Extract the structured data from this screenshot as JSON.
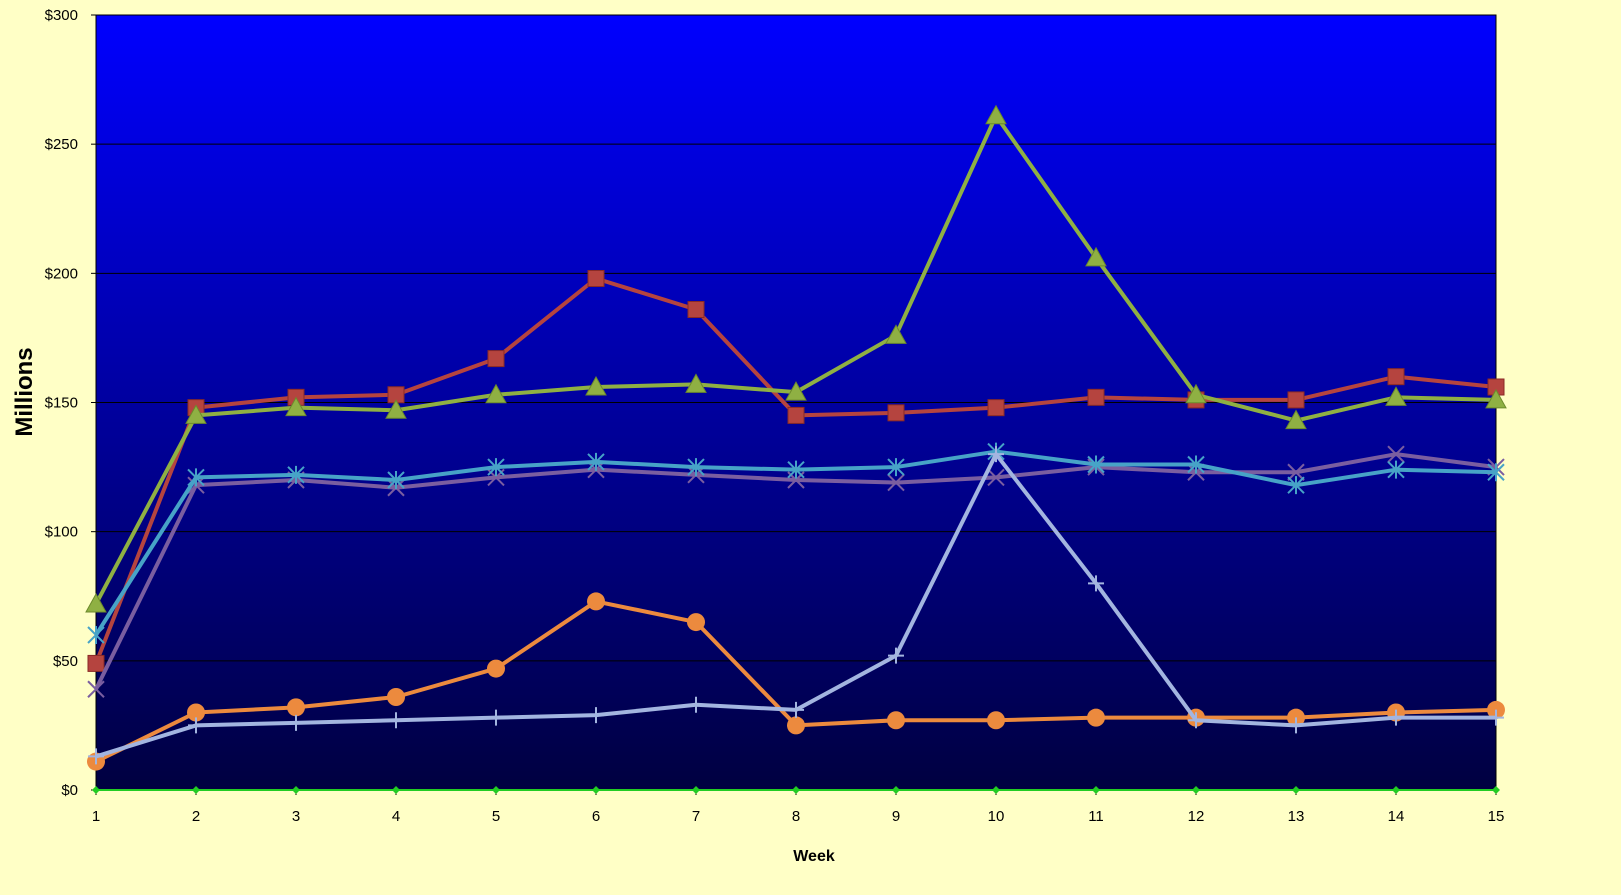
{
  "chart_data": {
    "type": "line",
    "title": "",
    "xlabel": "Week",
    "ylabel": "Millions",
    "x": [
      1,
      2,
      3,
      4,
      5,
      6,
      7,
      8,
      9,
      10,
      11,
      12,
      13,
      14,
      15
    ],
    "y_ticks": [
      "$0",
      "$50",
      "$100",
      "$150",
      "$200",
      "$250",
      "$300"
    ],
    "y_tick_values": [
      0,
      50,
      100,
      150,
      200,
      250,
      300
    ],
    "ylim": [
      0,
      300
    ],
    "grid": true,
    "legend": "none",
    "colors": {
      "page_background": "#ffffc6",
      "plot_gradient_top": "#0000ff",
      "plot_gradient_bottom": "#000040",
      "gridline": "#000000"
    },
    "series": [
      {
        "marker": "square",
        "color": "#b5443f",
        "values": [
          49,
          148,
          152,
          153,
          167,
          198,
          186,
          145,
          146,
          148,
          152,
          151,
          151,
          160,
          156
        ]
      },
      {
        "marker": "triangle",
        "color": "#8fb043",
        "values": [
          72,
          145,
          148,
          147,
          153,
          156,
          157,
          154,
          176,
          261,
          206,
          153,
          143,
          152,
          151
        ]
      },
      {
        "marker": "x",
        "color": "#7a5ea0",
        "values": [
          39,
          118,
          120,
          117,
          121,
          124,
          122,
          120,
          119,
          121,
          125,
          123,
          123,
          130,
          125
        ]
      },
      {
        "marker": "asterisk",
        "color": "#47a3c7",
        "values": [
          60,
          121,
          122,
          120,
          125,
          127,
          125,
          124,
          125,
          131,
          126,
          126,
          118,
          124,
          123
        ]
      },
      {
        "marker": "circle",
        "color": "#ec8a3e",
        "values": [
          11,
          30,
          32,
          36,
          47,
          73,
          65,
          25,
          27,
          27,
          28,
          28,
          28,
          30,
          31
        ]
      },
      {
        "marker": "plus",
        "color": "#a3b5e0",
        "values": [
          13,
          25,
          26,
          27,
          28,
          29,
          33,
          31,
          52,
          130,
          80,
          27,
          25,
          28,
          28
        ]
      },
      {
        "marker": "diamond",
        "color": "#22cc22",
        "values": [
          0,
          0,
          0,
          0,
          0,
          0,
          0,
          0,
          0,
          0,
          0,
          0,
          0,
          0,
          0
        ]
      }
    ]
  }
}
